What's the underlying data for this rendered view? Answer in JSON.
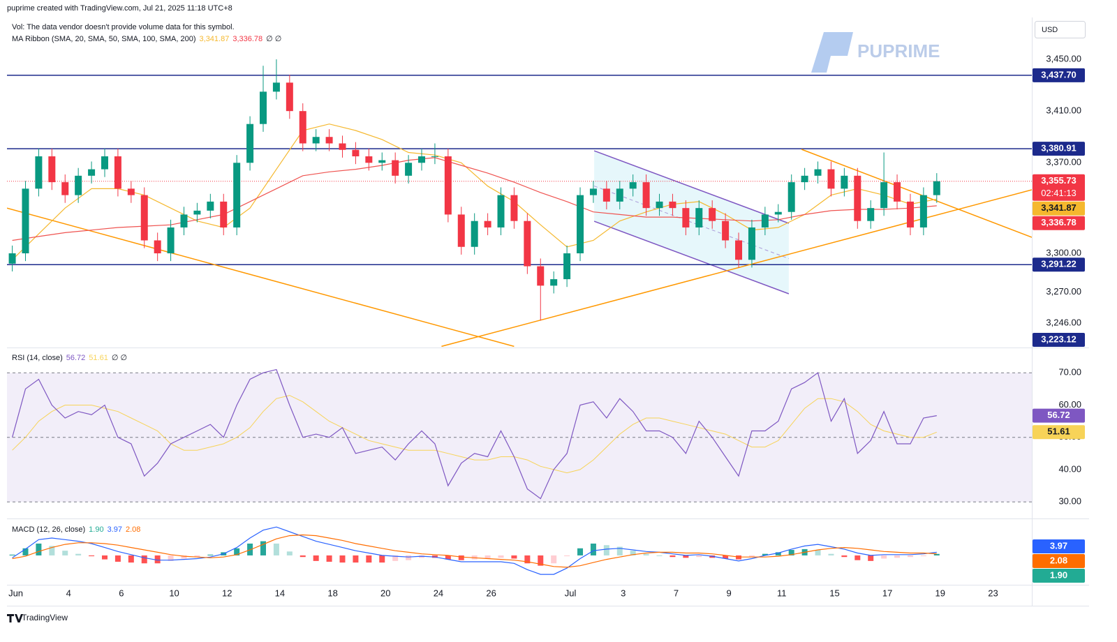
{
  "header": "puprime created with TradingView.com, Jul 21, 2025 11:18 UTC+8",
  "watermark": "PUPRIME",
  "currency": "USD",
  "footer": "TradingView",
  "chart_data": [
    {
      "type": "candlestick",
      "legend": [
        "Vol: The data vendor doesn't provide volume data for this symbol.",
        "MA Ribbon (SMA, 20, SMA, 50, SMA, 100, SMA, 200)",
        "∅ ∅"
      ],
      "x": [
        0,
        0.5,
        1,
        1.5,
        2,
        2.5,
        3,
        3.5,
        4,
        4.5,
        5,
        5.5,
        6,
        6.5,
        7,
        7.5,
        8,
        8.5,
        9,
        9.5,
        10,
        10.5,
        11,
        11.5,
        12,
        12.5,
        13,
        13.5,
        14,
        14.5,
        15,
        15.5,
        16,
        16.5,
        17,
        17.5,
        18,
        18.5,
        19,
        19.5,
        20,
        20.5,
        21,
        21.5,
        22,
        22.5,
        23,
        23.5,
        24,
        24.5,
        25,
        25.5,
        26,
        26.5,
        27,
        27.5,
        28,
        28.5,
        29,
        29.5,
        30,
        30.5,
        31,
        31.5,
        32,
        32.5,
        33,
        33.5,
        34,
        34.5,
        35
      ],
      "open": [
        3292,
        3300,
        3350,
        3375,
        3355,
        3345,
        3360,
        3365,
        3375,
        3350,
        3345,
        3310,
        3300,
        3320,
        3330,
        3333,
        3340,
        3320,
        3370,
        3400,
        3425,
        3432,
        3410,
        3385,
        3390,
        3385,
        3380,
        3375,
        3370,
        3372,
        3360,
        3370,
        3375,
        3375,
        3330,
        3305,
        3325,
        3320,
        3345,
        3325,
        3290,
        3275,
        3280,
        3300,
        3345,
        3350,
        3340,
        3350,
        3355,
        3335,
        3340,
        3335,
        3320,
        3335,
        3325,
        3310,
        3295,
        3320,
        3330,
        3332,
        3355,
        3360,
        3365,
        3350,
        3360,
        3325,
        3335,
        3355,
        3340,
        3320,
        3345
      ],
      "high": [
        3306,
        3356,
        3381,
        3381,
        3361,
        3366,
        3371,
        3381,
        3381,
        3356,
        3351,
        3316,
        3326,
        3336,
        3339,
        3346,
        3346,
        3376,
        3406,
        3445,
        3450,
        3438,
        3416,
        3396,
        3396,
        3391,
        3386,
        3381,
        3378,
        3378,
        3376,
        3381,
        3385,
        3381,
        3336,
        3331,
        3331,
        3351,
        3351,
        3331,
        3296,
        3286,
        3306,
        3351,
        3356,
        3356,
        3356,
        3361,
        3361,
        3346,
        3346,
        3341,
        3341,
        3341,
        3331,
        3316,
        3326,
        3336,
        3338,
        3361,
        3366,
        3371,
        3371,
        3366,
        3366,
        3341,
        3378,
        3361,
        3346,
        3351,
        3362
      ],
      "low": [
        3286,
        3294,
        3344,
        3349,
        3339,
        3339,
        3354,
        3359,
        3344,
        3339,
        3304,
        3294,
        3294,
        3314,
        3324,
        3327,
        3314,
        3314,
        3364,
        3394,
        3419,
        3404,
        3379,
        3379,
        3379,
        3374,
        3369,
        3364,
        3364,
        3354,
        3354,
        3364,
        3369,
        3324,
        3299,
        3299,
        3314,
        3314,
        3319,
        3284,
        3248,
        3269,
        3274,
        3294,
        3339,
        3334,
        3334,
        3344,
        3329,
        3329,
        3329,
        3314,
        3314,
        3319,
        3304,
        3289,
        3289,
        3314,
        3324,
        3326,
        3349,
        3354,
        3344,
        3344,
        3319,
        3319,
        3329,
        3334,
        3314,
        3314,
        3339
      ],
      "close": [
        3300,
        3350,
        3375,
        3355,
        3345,
        3360,
        3365,
        3375,
        3350,
        3345,
        3310,
        3300,
        3320,
        3330,
        3333,
        3340,
        3320,
        3370,
        3400,
        3425,
        3432,
        3410,
        3385,
        3390,
        3385,
        3380,
        3375,
        3370,
        3372,
        3360,
        3370,
        3375,
        3375,
        3330,
        3305,
        3325,
        3320,
        3345,
        3325,
        3290,
        3275,
        3280,
        3300,
        3345,
        3350,
        3340,
        3350,
        3355,
        3335,
        3340,
        3335,
        3320,
        3335,
        3325,
        3310,
        3295,
        3320,
        3330,
        3332,
        3355,
        3360,
        3365,
        3350,
        3360,
        3325,
        3335,
        3355,
        3340,
        3320,
        3345,
        3355.73
      ],
      "up_color": "#089981",
      "down_color": "#f23645",
      "series": [
        {
          "color": "#f5b82e",
          "x": [
            0,
            1,
            2,
            3,
            4,
            5,
            6,
            7,
            8,
            9,
            10,
            11,
            12,
            13,
            14,
            15,
            16,
            17,
            18,
            19,
            20,
            21,
            22,
            23,
            24,
            25,
            26,
            27,
            28,
            29,
            30,
            31,
            32,
            33,
            34,
            35
          ],
          "values": [
            3295,
            3315,
            3335,
            3350,
            3350,
            3345,
            3335,
            3325,
            3320,
            3335,
            3365,
            3395,
            3400,
            3395,
            3388,
            3378,
            3376,
            3370,
            3352,
            3340,
            3322,
            3305,
            3310,
            3325,
            3332,
            3338,
            3340,
            3330,
            3318,
            3320,
            3330,
            3345,
            3350,
            3345,
            3338,
            3341.87
          ]
        },
        {
          "color": "#ef5350",
          "x": [
            0,
            1,
            2,
            3,
            4,
            5,
            6,
            7,
            8,
            9,
            10,
            11,
            12,
            13,
            14,
            15,
            16,
            17,
            18,
            19,
            20,
            21,
            22,
            23,
            24,
            25,
            26,
            27,
            28,
            29,
            30,
            31,
            32,
            33,
            34,
            35
          ],
          "values": [
            3310,
            3313,
            3316,
            3318,
            3320,
            3321,
            3322,
            3326,
            3330,
            3340,
            3350,
            3360,
            3363,
            3365,
            3368,
            3372,
            3374,
            3368,
            3362,
            3355,
            3347,
            3340,
            3332,
            3330,
            3328,
            3328,
            3327,
            3326,
            3325,
            3326,
            3330,
            3333,
            3334,
            3334,
            3335,
            3336.78
          ]
        }
      ],
      "levels_color": "#1c2a8c",
      "levels": [
        {
          "value": 3437.7,
          "label": "3,437.70"
        },
        {
          "value": 3380.91,
          "label": "3,380.91"
        },
        {
          "value": 3291.22,
          "label": "3,291.22"
        },
        {
          "value": 3223.12,
          "label": "3,223.12"
        }
      ],
      "price_labels": [
        {
          "value": 3355.73,
          "label": "3,355.73",
          "sub": "02:41:13",
          "color": "#f23645"
        },
        {
          "value": 3341.87,
          "label": "3,341.87",
          "color": "#f5b82e",
          "text_color": "#131722"
        },
        {
          "value": 3336.78,
          "label": "3,336.78",
          "color": "#f23645"
        }
      ],
      "trendlines": [
        {
          "color": "#ff9800",
          "points": [
            [
              -0.2,
              3335
            ],
            [
              19,
              3228
            ]
          ]
        },
        {
          "color": "#ff9800",
          "points": [
            [
              16.25,
              3228
            ],
            [
              38.6,
              3349.1
            ]
          ]
        },
        {
          "color": "#ff9800",
          "points": [
            [
              29.88,
              3380.4
            ],
            [
              38.6,
              3312.4
            ]
          ]
        }
      ],
      "channel": {
        "color": "#7e57c2",
        "fill": "#e0f5fa",
        "upper": [
          [
            22.03,
            3379.3
          ],
          [
            29.4,
            3323.2
          ]
        ],
        "lower": [
          [
            22.03,
            3324.8
          ],
          [
            29.4,
            3268.7
          ]
        ]
      },
      "xlim": [
        -0.2,
        38.6
      ],
      "xticks": [
        {
          "value": 0,
          "label": "Jun"
        },
        {
          "value": 2,
          "label": "4"
        },
        {
          "value": 4,
          "label": "6"
        },
        {
          "value": 6,
          "label": "10"
        },
        {
          "value": 8,
          "label": "12"
        },
        {
          "value": 10,
          "label": "14"
        },
        {
          "value": 12,
          "label": "18"
        },
        {
          "value": 14,
          "label": "20"
        },
        {
          "value": 16,
          "label": "24"
        },
        {
          "value": 18,
          "label": "26"
        },
        {
          "value": 21,
          "label": "Jul"
        },
        {
          "value": 23,
          "label": "3"
        },
        {
          "value": 25,
          "label": "7"
        },
        {
          "value": 27,
          "label": "9"
        },
        {
          "value": 29,
          "label": "11"
        },
        {
          "value": 31,
          "label": "15"
        },
        {
          "value": 33,
          "label": "17"
        },
        {
          "value": 35,
          "label": "19"
        },
        {
          "value": 37,
          "label": "23"
        }
      ],
      "ylim": [
        3227.7,
        3482.4
      ],
      "yticks": [
        {
          "value": 3246,
          "label": "3,246.00"
        },
        {
          "value": 3270,
          "label": "3,270.00"
        },
        {
          "value": 3300,
          "label": "3,300.00"
        },
        {
          "value": 3370,
          "label": "3,370.00"
        },
        {
          "value": 3410,
          "label": "3,410.00"
        },
        {
          "value": 3450,
          "label": "3,450.00"
        }
      ]
    },
    {
      "type": "line",
      "legend": [
        "RSI (14, close)",
        "∅ ∅"
      ],
      "series": [
        {
          "color": "#7e57c2",
          "values": [
            50,
            65,
            68,
            60,
            56,
            58,
            57,
            60,
            50,
            48,
            38,
            42,
            48,
            50,
            52,
            54,
            50,
            60,
            68,
            70,
            71,
            60,
            50,
            51,
            50,
            53,
            45,
            46,
            47,
            43,
            48,
            52,
            48,
            35,
            42,
            45,
            44,
            52,
            44,
            34,
            31,
            40,
            45,
            60,
            61,
            56,
            62,
            58,
            52,
            52,
            50,
            45,
            55,
            50,
            44,
            38,
            52,
            52,
            55,
            65,
            67,
            70,
            55,
            62,
            45,
            49,
            58,
            48,
            48,
            56,
            56.72
          ]
        },
        {
          "color": "#f7d358",
          "values": [
            46,
            50,
            55,
            58,
            60,
            60,
            60,
            59,
            58,
            56,
            54,
            52,
            48,
            46,
            46,
            47,
            48,
            50,
            53,
            58,
            62,
            63,
            61,
            58,
            55,
            53,
            51,
            49,
            48,
            47,
            46,
            46,
            46,
            45,
            44,
            43,
            43,
            44,
            44,
            43,
            41,
            40,
            39,
            40,
            43,
            47,
            51,
            54,
            56,
            56,
            55,
            54,
            53,
            52,
            51,
            49,
            47,
            47,
            49,
            54,
            59,
            62,
            62,
            61,
            58,
            54,
            52,
            51,
            50,
            50,
            51.61
          ]
        }
      ],
      "band": [
        30,
        70
      ],
      "band_color": "#ede7f6",
      "hlines": [
        70,
        50,
        30
      ],
      "ylim": [
        25.5,
        77.4
      ],
      "yticks": [
        {
          "value": 30,
          "label": "30.00"
        },
        {
          "value": 40,
          "label": "40.00"
        },
        {
          "value": 50,
          "label": "50.00"
        },
        {
          "value": 60,
          "label": "60.00"
        },
        {
          "value": 70,
          "label": "70.00"
        }
      ],
      "price_labels": [
        {
          "value": 56.72,
          "color": "#7e57c2"
        },
        {
          "value": 51.61,
          "color": "#f7d358",
          "text_color": "#131722"
        }
      ]
    },
    {
      "type": "macd",
      "legend": [
        "MACD (12, 26, close)"
      ],
      "histogram": [
        1,
        9,
        15,
        12,
        6,
        2,
        -1,
        -5,
        -8,
        -9,
        -10,
        -10,
        -7,
        -4,
        -2,
        1,
        4,
        9,
        15,
        18,
        15,
        5,
        -2,
        -7,
        -8,
        -9,
        -9,
        -9,
        -9,
        -7,
        -6,
        -3,
        -3,
        -5,
        -6,
        -5,
        -4,
        -3,
        -4,
        -10,
        -13,
        -10,
        -1,
        9,
        15,
        13,
        11,
        6,
        2,
        0,
        -2,
        -3,
        -2,
        -3,
        -4,
        -5,
        -2,
        2,
        4,
        7,
        8,
        7,
        2,
        -2,
        -6,
        -7,
        -4,
        -3,
        -2,
        -1,
        1.9
      ],
      "series": [
        {
          "color": "#2962ff",
          "values": [
            -3,
            8,
            20,
            22,
            20,
            18,
            15,
            10,
            5,
            1,
            -3,
            -6,
            -6,
            -5,
            -4,
            -2,
            2,
            10,
            22,
            32,
            36,
            30,
            24,
            18,
            14,
            10,
            6,
            3,
            0,
            -1,
            -2,
            -1,
            -2,
            -5,
            -8,
            -8,
            -8,
            -8,
            -10,
            -18,
            -24,
            -24,
            -16,
            -4,
            6,
            8,
            9,
            7,
            5,
            4,
            2,
            0,
            1,
            -1,
            -4,
            -7,
            -4,
            0,
            3,
            8,
            12,
            14,
            11,
            8,
            3,
            0,
            1,
            1,
            1,
            2,
            3.97
          ]
        },
        {
          "color": "#ff6d00",
          "values": [
            -4,
            -1,
            5,
            10,
            14,
            16,
            16,
            15,
            13,
            10,
            7,
            4,
            1,
            -1,
            -2,
            -3,
            -2,
            1,
            7,
            14,
            21,
            25,
            26,
            25,
            22,
            19,
            15,
            12,
            9,
            6,
            4,
            2,
            1,
            0,
            -2,
            -3,
            -4,
            -5,
            -6,
            -8,
            -11,
            -14,
            -15,
            -13,
            -9,
            -5,
            -2,
            1,
            3,
            4,
            4,
            3,
            3,
            2,
            0,
            -2,
            -2,
            -2,
            -1,
            1,
            4,
            7,
            9,
            10,
            9,
            7,
            5,
            4,
            3,
            3,
            2.08
          ]
        }
      ],
      "ylim": [
        -34.5,
        45
      ],
      "price_labels": [
        {
          "value": 3.97,
          "color": "#2962ff"
        },
        {
          "value": 2.08,
          "color": "#ff6d00"
        },
        {
          "value": 1.9,
          "label": "1.90",
          "color": "#22ab94"
        }
      ]
    }
  ]
}
